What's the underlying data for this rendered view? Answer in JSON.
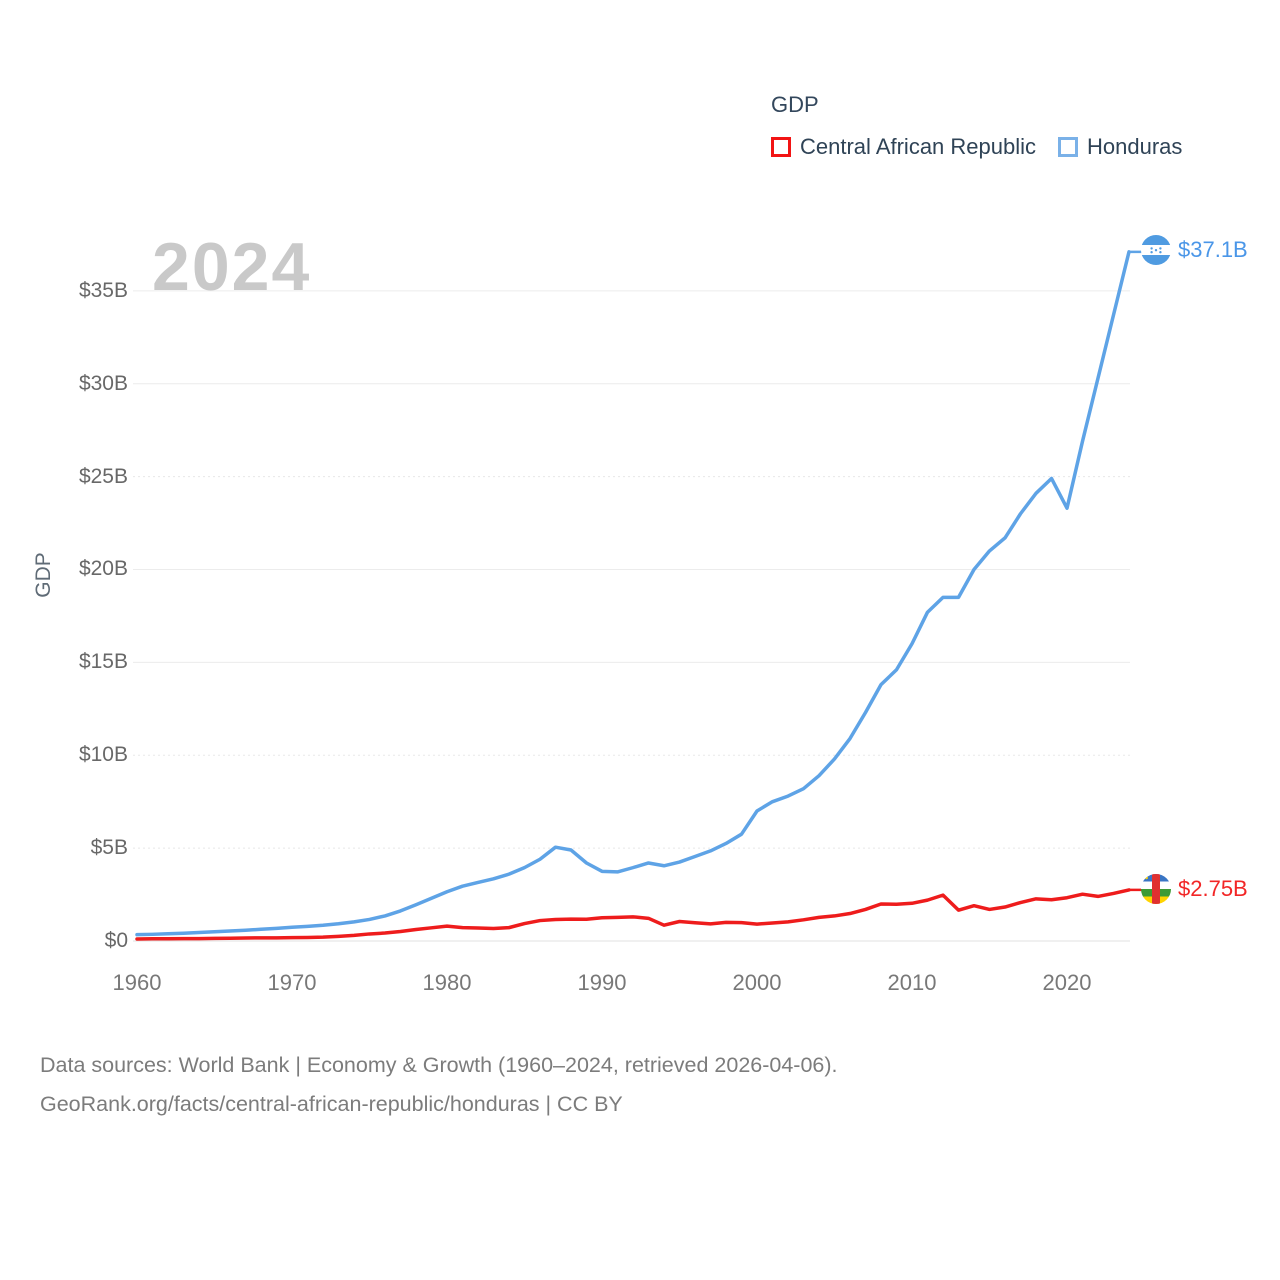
{
  "legend": {
    "title": "GDP",
    "items": [
      {
        "label": "Central African Republic",
        "color": "#f21414"
      },
      {
        "label": "Honduras",
        "color": "#7ab1e8"
      }
    ]
  },
  "watermark": "2024",
  "end_labels": {
    "honduras": {
      "value": "$37.1B",
      "color": "#4a96e8",
      "flag": "honduras-flag"
    },
    "car": {
      "value": "$2.75B",
      "color": "#f22626",
      "flag": "central-african-republic-flag"
    }
  },
  "footer": {
    "line1": "Data sources: World Bank | Economy & Growth (1960–2024, retrieved 2026-04-06).",
    "line2": "GeoRank.org/facts/central-african-republic/honduras | CC BY"
  },
  "chart_data": {
    "type": "line",
    "title": "GDP",
    "ylabel": "GDP",
    "unit": "billions of current US$",
    "ylim": [
      0,
      37.5
    ],
    "xlim": [
      1960,
      2024
    ],
    "grid": true,
    "legend_position": "top-right",
    "y_tick_labels": [
      "$0",
      "$5B",
      "$10B",
      "$15B",
      "$20B",
      "$25B",
      "$30B",
      "$35B"
    ],
    "y_tick_values": [
      0,
      5,
      10,
      15,
      20,
      25,
      30,
      35
    ],
    "x_tick_labels": [
      "1960",
      "1970",
      "1980",
      "1990",
      "2000",
      "2010",
      "2020"
    ],
    "x": [
      1960,
      1961,
      1962,
      1963,
      1964,
      1965,
      1966,
      1967,
      1968,
      1969,
      1970,
      1971,
      1972,
      1973,
      1974,
      1975,
      1976,
      1977,
      1978,
      1979,
      1980,
      1981,
      1982,
      1983,
      1984,
      1985,
      1986,
      1987,
      1988,
      1989,
      1990,
      1991,
      1992,
      1993,
      1994,
      1995,
      1996,
      1997,
      1998,
      1999,
      2000,
      2001,
      2002,
      2003,
      2004,
      2005,
      2006,
      2007,
      2008,
      2009,
      2010,
      2011,
      2012,
      2013,
      2014,
      2015,
      2016,
      2017,
      2018,
      2019,
      2020,
      2021,
      2022,
      2023,
      2024
    ],
    "series": [
      {
        "name": "Central African Republic",
        "color": "#ee1c1c",
        "end_value_label": "$2.75B",
        "values": [
          0.11,
          0.12,
          0.12,
          0.13,
          0.13,
          0.14,
          0.15,
          0.16,
          0.17,
          0.17,
          0.18,
          0.19,
          0.21,
          0.25,
          0.3,
          0.38,
          0.43,
          0.51,
          0.62,
          0.71,
          0.8,
          0.72,
          0.7,
          0.67,
          0.72,
          0.94,
          1.1,
          1.16,
          1.18,
          1.17,
          1.25,
          1.27,
          1.3,
          1.22,
          0.85,
          1.05,
          0.98,
          0.92,
          1.0,
          0.99,
          0.91,
          0.97,
          1.03,
          1.14,
          1.27,
          1.35,
          1.48,
          1.7,
          1.99,
          1.98,
          2.03,
          2.2,
          2.47,
          1.66,
          1.9,
          1.7,
          1.83,
          2.07,
          2.27,
          2.22,
          2.33,
          2.52,
          2.4,
          2.56,
          2.75
        ]
      },
      {
        "name": "Honduras",
        "color": "#5ea3e6",
        "end_value_label": "$37.1B",
        "values": [
          0.34,
          0.36,
          0.39,
          0.42,
          0.46,
          0.5,
          0.54,
          0.58,
          0.63,
          0.68,
          0.74,
          0.79,
          0.85,
          0.93,
          1.03,
          1.16,
          1.35,
          1.62,
          1.95,
          2.3,
          2.65,
          2.95,
          3.15,
          3.35,
          3.6,
          3.95,
          4.4,
          5.05,
          4.9,
          4.2,
          3.75,
          3.72,
          3.95,
          4.2,
          4.05,
          4.25,
          4.55,
          4.85,
          5.25,
          5.75,
          7.0,
          7.5,
          7.8,
          8.2,
          8.9,
          9.8,
          10.9,
          12.3,
          13.8,
          14.6,
          16.0,
          17.7,
          18.5,
          18.5,
          20.0,
          21.0,
          21.7,
          23.0,
          24.1,
          24.9,
          23.3,
          26.9,
          30.3,
          33.7,
          37.1
        ]
      }
    ]
  }
}
